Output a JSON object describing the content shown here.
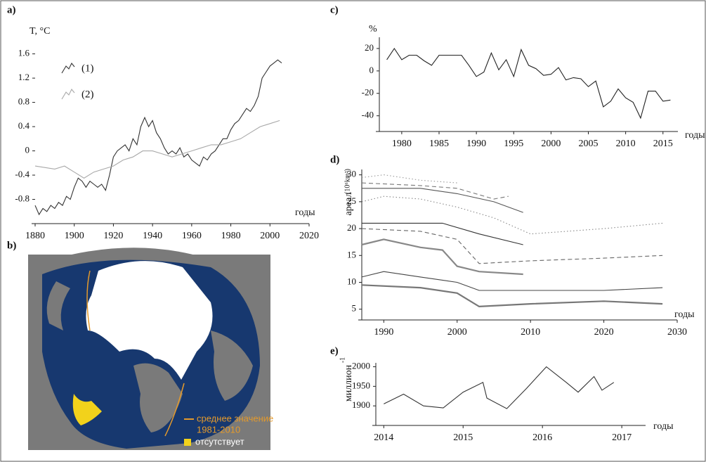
{
  "chart_data": [
    {
      "type": "line",
      "label": "a)",
      "y_label": "T, °C",
      "x_label": "годы",
      "xlim": [
        1880,
        2020
      ],
      "ylim": [
        -1.2,
        1.7
      ],
      "xticks": [
        1880,
        1900,
        1920,
        1940,
        1960,
        1980,
        2000,
        2020
      ],
      "yticks": [
        -0.8,
        -0.4,
        0,
        0.4,
        0.8,
        1.2,
        1.6
      ],
      "series": [
        {
          "name": "(1)",
          "color": "#333333",
          "style": "solid",
          "x": [
            1880,
            1882,
            1884,
            1886,
            1888,
            1890,
            1892,
            1894,
            1896,
            1898,
            1900,
            1902,
            1904,
            1906,
            1908,
            1910,
            1912,
            1914,
            1916,
            1918,
            1920,
            1922,
            1924,
            1926,
            1928,
            1930,
            1932,
            1934,
            1936,
            1938,
            1940,
            1942,
            1944,
            1946,
            1948,
            1950,
            1952,
            1954,
            1956,
            1958,
            1960,
            1962,
            1964,
            1966,
            1968,
            1970,
            1972,
            1974,
            1976,
            1978,
            1980,
            1982,
            1984,
            1986,
            1988,
            1990,
            1992,
            1994,
            1996,
            1998,
            2000,
            2002,
            2004,
            2006
          ],
          "values": [
            -0.9,
            -1.05,
            -0.95,
            -1.0,
            -0.9,
            -0.95,
            -0.85,
            -0.9,
            -0.75,
            -0.8,
            -0.6,
            -0.45,
            -0.5,
            -0.6,
            -0.5,
            -0.55,
            -0.6,
            -0.55,
            -0.65,
            -0.4,
            -0.1,
            0.0,
            0.05,
            0.1,
            0.0,
            0.2,
            0.1,
            0.4,
            0.55,
            0.4,
            0.5,
            0.3,
            0.2,
            0.05,
            -0.05,
            0.0,
            -0.05,
            0.05,
            -0.1,
            -0.05,
            -0.15,
            -0.2,
            -0.25,
            -0.1,
            -0.15,
            -0.05,
            0.0,
            0.1,
            0.2,
            0.2,
            0.35,
            0.45,
            0.5,
            0.6,
            0.7,
            0.65,
            0.75,
            0.9,
            1.2,
            1.3,
            1.4,
            1.45,
            1.5,
            1.45
          ]
        },
        {
          "name": "(2)",
          "color": "#a8a8a8",
          "style": "solid",
          "x": [
            1880,
            1890,
            1895,
            1900,
            1905,
            1910,
            1915,
            1920,
            1925,
            1930,
            1935,
            1940,
            1945,
            1950,
            1955,
            1960,
            1965,
            1970,
            1975,
            1980,
            1985,
            1990,
            1995,
            2000,
            2005
          ],
          "values": [
            -0.25,
            -0.3,
            -0.25,
            -0.35,
            -0.45,
            -0.35,
            -0.3,
            -0.25,
            -0.15,
            -0.1,
            0.0,
            0.0,
            -0.05,
            -0.1,
            -0.05,
            0.0,
            0.05,
            0.1,
            0.1,
            0.15,
            0.2,
            0.3,
            0.4,
            0.45,
            0.5
          ]
        }
      ]
    },
    {
      "type": "line",
      "label": "c)",
      "y_label": "%",
      "x_label": "годы",
      "xlim": [
        1977,
        2017
      ],
      "ylim": [
        -54,
        30
      ],
      "xticks": [
        1980,
        1985,
        1990,
        1995,
        2000,
        2005,
        2010,
        2015
      ],
      "yticks": [
        -40,
        -20,
        0,
        20
      ],
      "series": [
        {
          "color": "#222222",
          "style": "solid",
          "x": [
            1978,
            1979,
            1980,
            1981,
            1982,
            1983,
            1984,
            1985,
            1986,
            1987,
            1988,
            1989,
            1990,
            1991,
            1992,
            1993,
            1994,
            1995,
            1996,
            1997,
            1998,
            1999,
            2000,
            2001,
            2002,
            2003,
            2004,
            2005,
            2006,
            2007,
            2008,
            2009,
            2010,
            2011,
            2012,
            2013,
            2014,
            2015,
            2016
          ],
          "values": [
            10,
            20,
            10,
            14,
            14,
            9,
            5,
            14,
            14,
            14,
            14,
            5,
            -5,
            -1,
            16,
            1,
            10,
            -5,
            19,
            5,
            2,
            -4,
            -3,
            3,
            -8,
            -6,
            -7,
            -14,
            -9,
            -32,
            -27,
            -16,
            -24,
            -28,
            -42,
            -18,
            -18,
            -27,
            -26
          ]
        }
      ]
    },
    {
      "type": "line",
      "label": "d)",
      "y_label": "ареал",
      "y_unit": "(10⁶km²)",
      "x_label": "годы",
      "xlim": [
        1987,
        2030
      ],
      "ylim": [
        3,
        31
      ],
      "xticks": [
        1990,
        2000,
        2010,
        2020,
        2030
      ],
      "yticks": [
        5,
        10,
        15,
        20,
        25,
        30
      ],
      "series": [
        {
          "color": "#999999",
          "style": "dotted",
          "x": [
            1987,
            1990,
            1995,
            2000
          ],
          "values": [
            29.5,
            30,
            29,
            28.5
          ]
        },
        {
          "color": "#777777",
          "style": "dashed",
          "x": [
            1987,
            1995,
            2000,
            2005,
            2007
          ],
          "values": [
            28.5,
            28,
            27.5,
            25.5,
            26
          ]
        },
        {
          "color": "#555555",
          "style": "solid",
          "x": [
            1987,
            1995,
            2000,
            2005,
            2009
          ],
          "values": [
            27.5,
            27.5,
            26.5,
            25,
            23
          ]
        },
        {
          "color": "#888888",
          "style": "dotted",
          "x": [
            1987,
            1990,
            1995,
            2000,
            2005,
            2010,
            2020,
            2028
          ],
          "values": [
            25,
            26,
            25.5,
            24,
            22,
            19,
            20,
            21
          ]
        },
        {
          "color": "#333333",
          "style": "solid",
          "x": [
            1987,
            1998,
            2003,
            2009
          ],
          "values": [
            21,
            21,
            19,
            17
          ]
        },
        {
          "color": "#666666",
          "style": "dashed",
          "x": [
            1987,
            1995,
            2000,
            2003,
            2010,
            2020,
            2028
          ],
          "values": [
            20,
            19.5,
            18,
            13.5,
            14,
            14.5,
            15
          ]
        },
        {
          "color": "#888888",
          "style": "thick",
          "x": [
            1987,
            1990,
            1995,
            1998,
            2000,
            2003,
            2009
          ],
          "values": [
            17,
            18,
            16.5,
            16,
            13,
            12,
            11.5
          ]
        },
        {
          "color": "#444444",
          "style": "solid",
          "x": [
            1987,
            1990,
            1995,
            2000,
            2003,
            2010,
            2020,
            2028
          ],
          "values": [
            11,
            12,
            11,
            10,
            8.5,
            8.5,
            8.5,
            9
          ]
        },
        {
          "color": "#777777",
          "style": "thick",
          "x": [
            1987,
            1995,
            2000,
            2003,
            2010,
            2020,
            2028
          ],
          "values": [
            9.5,
            9,
            8,
            5.5,
            6,
            6.5,
            6
          ]
        }
      ]
    },
    {
      "type": "line",
      "label": "e)",
      "y_label": "миллион",
      "y_unit": "-1",
      "x_label": "годы",
      "xlim": [
        2013.9,
        2017.3
      ],
      "ylim": [
        1850,
        2010
      ],
      "xticks": [
        2014,
        2015,
        2016,
        2017
      ],
      "yticks": [
        1900,
        1950,
        2000
      ],
      "series": [
        {
          "color": "#333333",
          "style": "solid",
          "x": [
            2014.0,
            2014.25,
            2014.5,
            2014.75,
            2015.0,
            2015.25,
            2015.3,
            2015.55,
            2015.8,
            2016.05,
            2016.3,
            2016.45,
            2016.65,
            2016.75,
            2016.9
          ],
          "values": [
            1905,
            1930,
            1900,
            1895,
            1935,
            1960,
            1920,
            1893,
            1945,
            2000,
            1960,
            1935,
            1975,
            1940,
            1960
          ]
        }
      ]
    }
  ],
  "map_panel": {
    "label": "b)",
    "legend": [
      "среднее значение",
      "1981-2010",
      "отсутствует"
    ]
  }
}
